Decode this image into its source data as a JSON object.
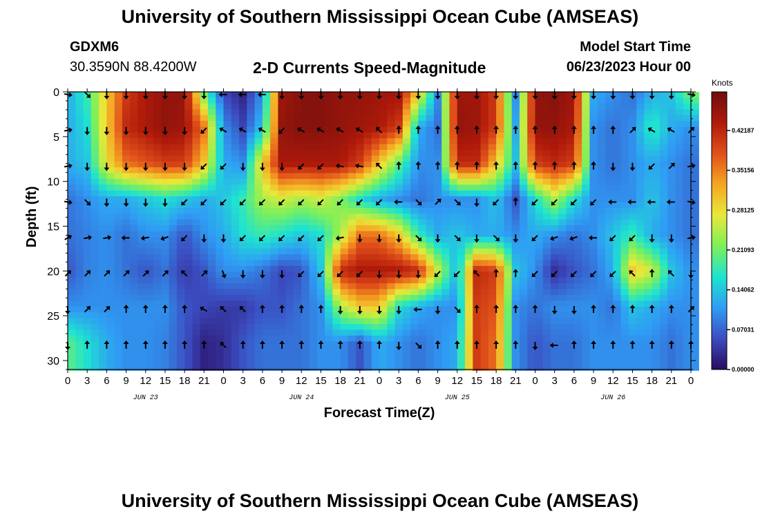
{
  "header": {
    "title": "University of Southern Mississippi Ocean Cube (AMSEAS)",
    "station": "GDXM6",
    "coords": "30.3590N  88.4200W",
    "chart_title": "2-D Currents Speed-Magnitude",
    "model_start_label": "Model Start Time",
    "model_start_value": "06/23/2023 Hour 00"
  },
  "footer": {
    "title": "University of Southern Mississippi Ocean Cube (AMSEAS)"
  },
  "chart_data": {
    "type": "heatmap",
    "title": "2-D Currents Speed-Magnitude",
    "xlabel": "Forecast Time(Z)",
    "ylabel": "Depth (ft)",
    "x_ticks": [
      "0",
      "3",
      "6",
      "9",
      "12",
      "15",
      "18",
      "21",
      "0",
      "3",
      "6",
      "9",
      "12",
      "15",
      "18",
      "21",
      "0",
      "3",
      "6",
      "9",
      "12",
      "15",
      "18",
      "21",
      "0",
      "3",
      "6",
      "9",
      "12",
      "15",
      "18",
      "21",
      "0"
    ],
    "day_labels": [
      {
        "label": "JUN 23",
        "tick": 4
      },
      {
        "label": "JUN 24",
        "tick": 12
      },
      {
        "label": "JUN 25",
        "tick": 20
      },
      {
        "label": "JUN 26",
        "tick": 28
      }
    ],
    "y_ticks": [
      0,
      5,
      10,
      15,
      20,
      25,
      30
    ],
    "ylim": [
      0,
      31
    ],
    "y_inverted": true,
    "colorbar": {
      "unit": "Knots",
      "ticks": [
        "0.42187",
        "0.35156",
        "0.28125",
        "0.21093",
        "0.14062",
        "0.07031",
        "0.00000"
      ],
      "range": [
        0,
        0.49
      ],
      "colors": [
        "#2a0a5e",
        "#3b4cc0",
        "#2f9df4",
        "#1ee3d0",
        "#7cf05a",
        "#e8e83a",
        "#f5a623",
        "#e0501a",
        "#b01a0a",
        "#6e0e0e"
      ]
    },
    "depth_levels": [
      0,
      4,
      8,
      12,
      16,
      20,
      24,
      28
    ],
    "speed_grid": [
      [
        0.12,
        0.18,
        0.3,
        0.4,
        0.44,
        0.46,
        0.46,
        0.2,
        0.05,
        0.02,
        0.1,
        0.45,
        0.47,
        0.47,
        0.46,
        0.46,
        0.45,
        0.45,
        0.3,
        0.1,
        0.45,
        0.45,
        0.4,
        0.1,
        0.46,
        0.47,
        0.45,
        0.12,
        0.1,
        0.08,
        0.12,
        0.14,
        0.22
      ],
      [
        0.12,
        0.16,
        0.3,
        0.42,
        0.44,
        0.46,
        0.45,
        0.36,
        0.1,
        0.05,
        0.14,
        0.46,
        0.47,
        0.47,
        0.46,
        0.45,
        0.44,
        0.4,
        0.12,
        0.08,
        0.46,
        0.45,
        0.4,
        0.12,
        0.46,
        0.46,
        0.44,
        0.1,
        0.08,
        0.1,
        0.18,
        0.12,
        0.1
      ],
      [
        0.12,
        0.14,
        0.28,
        0.36,
        0.38,
        0.4,
        0.4,
        0.3,
        0.12,
        0.1,
        0.3,
        0.44,
        0.44,
        0.44,
        0.44,
        0.4,
        0.3,
        0.2,
        0.1,
        0.1,
        0.42,
        0.42,
        0.3,
        0.14,
        0.4,
        0.42,
        0.4,
        0.1,
        0.08,
        0.1,
        0.12,
        0.1,
        0.08
      ],
      [
        0.08,
        0.1,
        0.12,
        0.12,
        0.14,
        0.16,
        0.14,
        0.12,
        0.14,
        0.18,
        0.24,
        0.26,
        0.24,
        0.26,
        0.22,
        0.16,
        0.12,
        0.1,
        0.08,
        0.1,
        0.1,
        0.1,
        0.14,
        0.06,
        0.16,
        0.24,
        0.16,
        0.1,
        0.1,
        0.1,
        0.14,
        0.1,
        0.08
      ],
      [
        0.08,
        0.09,
        0.1,
        0.08,
        0.1,
        0.1,
        0.06,
        0.1,
        0.12,
        0.16,
        0.18,
        0.16,
        0.14,
        0.16,
        0.24,
        0.36,
        0.36,
        0.3,
        0.18,
        0.12,
        0.14,
        0.12,
        0.12,
        0.1,
        0.12,
        0.1,
        0.08,
        0.1,
        0.14,
        0.18,
        0.12,
        0.1,
        0.08
      ],
      [
        0.06,
        0.09,
        0.1,
        0.08,
        0.06,
        0.08,
        0.04,
        0.06,
        0.1,
        0.1,
        0.08,
        0.05,
        0.06,
        0.14,
        0.42,
        0.44,
        0.44,
        0.44,
        0.42,
        0.26,
        0.12,
        0.42,
        0.4,
        0.14,
        0.1,
        0.03,
        0.06,
        0.08,
        0.12,
        0.3,
        0.26,
        0.14,
        0.1
      ],
      [
        0.1,
        0.1,
        0.1,
        0.1,
        0.1,
        0.1,
        0.06,
        0.05,
        0.04,
        0.04,
        0.06,
        0.06,
        0.08,
        0.1,
        0.24,
        0.3,
        0.3,
        0.16,
        0.12,
        0.1,
        0.1,
        0.4,
        0.38,
        0.1,
        0.08,
        0.1,
        0.1,
        0.1,
        0.08,
        0.14,
        0.12,
        0.1,
        0.1
      ],
      [
        0.2,
        0.16,
        0.12,
        0.1,
        0.1,
        0.09,
        0.06,
        0.02,
        0.03,
        0.06,
        0.08,
        0.08,
        0.08,
        0.1,
        0.1,
        0.06,
        0.12,
        0.1,
        0.08,
        0.1,
        0.12,
        0.4,
        0.36,
        0.1,
        0.06,
        0.08,
        0.08,
        0.1,
        0.1,
        0.1,
        0.1,
        0.08,
        0.1
      ]
    ],
    "direction_grid": [
      [
        100,
        135,
        180,
        180,
        180,
        180,
        180,
        180,
        270,
        270,
        270,
        180,
        180,
        180,
        180,
        180,
        180,
        180,
        180,
        180,
        180,
        180,
        180,
        180,
        180,
        180,
        180,
        180,
        180,
        180,
        180,
        180,
        100
      ],
      [
        80,
        180,
        180,
        180,
        180,
        180,
        180,
        225,
        300,
        300,
        300,
        225,
        300,
        300,
        300,
        300,
        315,
        0,
        0,
        0,
        0,
        0,
        0,
        0,
        0,
        0,
        0,
        0,
        0,
        45,
        300,
        300,
        45
      ],
      [
        80,
        180,
        180,
        180,
        180,
        180,
        180,
        225,
        225,
        180,
        180,
        180,
        225,
        225,
        280,
        280,
        315,
        0,
        0,
        0,
        0,
        0,
        0,
        0,
        0,
        0,
        0,
        0,
        180,
        180,
        225,
        45,
        80
      ],
      [
        100,
        135,
        180,
        180,
        180,
        180,
        225,
        225,
        225,
        225,
        225,
        225,
        225,
        225,
        225,
        225,
        225,
        270,
        135,
        45,
        135,
        180,
        225,
        0,
        225,
        225,
        225,
        225,
        270,
        270,
        270,
        270,
        100
      ],
      [
        60,
        80,
        80,
        270,
        260,
        250,
        225,
        180,
        180,
        225,
        225,
        225,
        225,
        225,
        260,
        180,
        180,
        180,
        135,
        180,
        135,
        180,
        135,
        180,
        225,
        250,
        250,
        270,
        225,
        225,
        180,
        180,
        80
      ],
      [
        45,
        45,
        45,
        45,
        45,
        45,
        315,
        45,
        160,
        180,
        180,
        180,
        225,
        225,
        225,
        225,
        180,
        180,
        180,
        225,
        225,
        315,
        0,
        0,
        225,
        225,
        225,
        225,
        225,
        315,
        0,
        315,
        180
      ],
      [
        180,
        45,
        45,
        0,
        0,
        0,
        0,
        300,
        315,
        315,
        0,
        0,
        0,
        0,
        180,
        180,
        180,
        180,
        270,
        180,
        135,
        0,
        0,
        0,
        0,
        180,
        180,
        0,
        0,
        0,
        0,
        0,
        45
      ],
      [
        180,
        0,
        0,
        0,
        0,
        0,
        0,
        0,
        315,
        0,
        0,
        0,
        0,
        0,
        0,
        0,
        0,
        180,
        135,
        0,
        0,
        0,
        0,
        0,
        180,
        270,
        0,
        0,
        0,
        0,
        0,
        0,
        0
      ]
    ]
  }
}
